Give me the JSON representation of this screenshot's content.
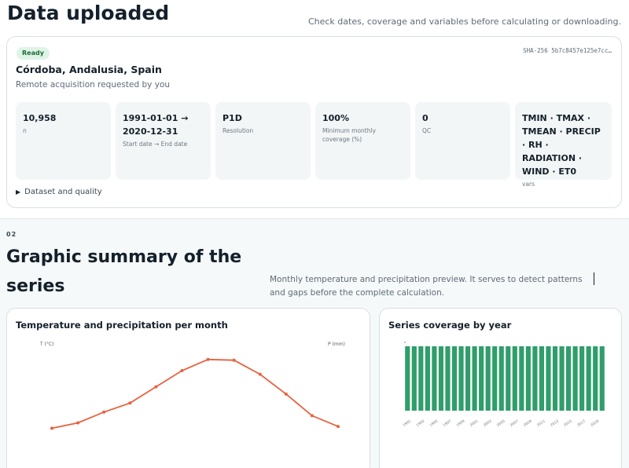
{
  "header": {
    "title": "Data uploaded",
    "subtitle": "Check dates, coverage and variables before calculating or downloading."
  },
  "dataset": {
    "status_badge": "Ready",
    "hash": "SHA-256 5b7c8457e125e7cc…",
    "location": "Córdoba, Andalusia, Spain",
    "requested_by": "Remote acquisition requested by you",
    "stats": [
      {
        "value": "10,958",
        "label": "n"
      },
      {
        "value": "1991-01-01 → 2020-12-31",
        "label": "Start date → End date"
      },
      {
        "value": "P1D",
        "label": "Resolution"
      },
      {
        "value": "100%",
        "label": "Minimum monthly coverage (%)"
      },
      {
        "value": "0",
        "label": "QC"
      },
      {
        "value": "TMIN · TMAX · TMEAN · PRECIP · RH · RADIATION · WIND · ET0",
        "label": "vars"
      }
    ],
    "details_label": "Dataset and quality"
  },
  "summary": {
    "section_number": "02",
    "title": "Graphic summary of the series",
    "subtitle": "Monthly temperature and precipitation preview. It serves to detect patterns and gaps before the complete calculation."
  },
  "chart_data": [
    {
      "type": "line",
      "title": "Temperature and precipitation per month",
      "ylabel": "T (°C)",
      "y2label": "P (mm)",
      "x": [
        1,
        2,
        3,
        4,
        5,
        6,
        7,
        8,
        9,
        10,
        11,
        12
      ],
      "series": [
        {
          "values": [
            9.5,
            11,
            14,
            16.5,
            21,
            25.5,
            28.6,
            28.4,
            24.5,
            19,
            13,
            10
          ],
          "color": "#e8613f"
        }
      ],
      "ylim": [
        0,
        34
      ],
      "grid": false
    },
    {
      "type": "bar",
      "title": "Series coverage by year",
      "categories": [
        "1991",
        "1992",
        "1993",
        "1994",
        "1995",
        "1996",
        "1997",
        "1998",
        "1999",
        "2000",
        "2001",
        "2002",
        "2003",
        "2004",
        "2005",
        "2006",
        "2007",
        "2008",
        "2009",
        "2010",
        "2011",
        "2012",
        "2013",
        "2014",
        "2015",
        "2016",
        "2017",
        "2018",
        "2019",
        "2020"
      ],
      "tick_labels": [
        "1991",
        "1993",
        "1995",
        "1997",
        "1999",
        "2001",
        "2003",
        "2005",
        "2007",
        "2009",
        "2011",
        "2013",
        "2015",
        "2017",
        "2019"
      ],
      "values": [
        100,
        100,
        100,
        100,
        100,
        100,
        100,
        100,
        100,
        100,
        100,
        100,
        100,
        100,
        100,
        100,
        100,
        100,
        100,
        100,
        100,
        100,
        100,
        100,
        100,
        100,
        100,
        100,
        100,
        100
      ],
      "ylim": [
        0,
        100
      ],
      "color": "#2f9e6b"
    }
  ]
}
